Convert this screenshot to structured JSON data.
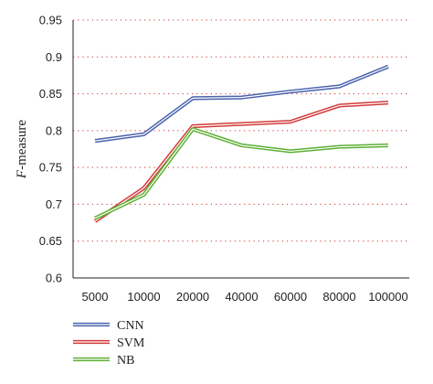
{
  "chart_data": {
    "type": "line",
    "categories": [
      "5000",
      "10000",
      "20000",
      "40000",
      "60000",
      "80000",
      "100000"
    ],
    "ylabel_italic": "F",
    "ylabel_rest": "-measure",
    "ylim": [
      0.6,
      0.95
    ],
    "yticks": [
      "0.6",
      "0.65",
      "0.7",
      "0.75",
      "0.8",
      "0.85",
      "0.9",
      "0.95"
    ],
    "grid": true,
    "legend_position": "bottom-left",
    "series": [
      {
        "name": "CNN",
        "color": "#4a62ad",
        "values": [
          0.786,
          0.795,
          0.844,
          0.845,
          0.853,
          0.86,
          0.887
        ]
      },
      {
        "name": "SVM",
        "color": "#d43a3a",
        "values": [
          0.677,
          0.722,
          0.806,
          0.809,
          0.812,
          0.834,
          0.838
        ]
      },
      {
        "name": "NB",
        "color": "#5cb034",
        "values": [
          0.681,
          0.713,
          0.802,
          0.78,
          0.772,
          0.778,
          0.78
        ]
      }
    ]
  }
}
